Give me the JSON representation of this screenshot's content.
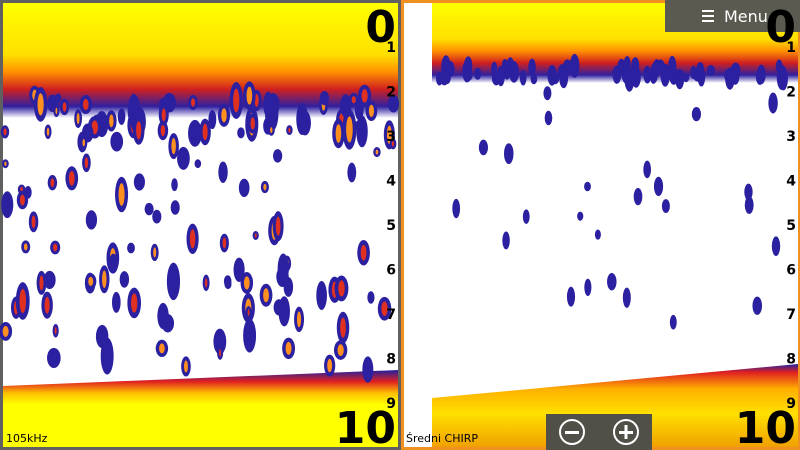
{
  "menu": {
    "label": "Menu"
  },
  "left_panel": {
    "depth_top": "0",
    "depth_bottom": "10",
    "depth_scale": [
      "1",
      "2",
      "3",
      "4",
      "5",
      "6",
      "7",
      "8",
      "9"
    ],
    "frequency": "105kHz"
  },
  "right_panel": {
    "depth_top": "0",
    "depth_bottom": "10",
    "depth_scale": [
      "1",
      "2",
      "3",
      "4",
      "5",
      "6",
      "7",
      "8",
      "9"
    ],
    "mode": "Średni CHIRP"
  }
}
